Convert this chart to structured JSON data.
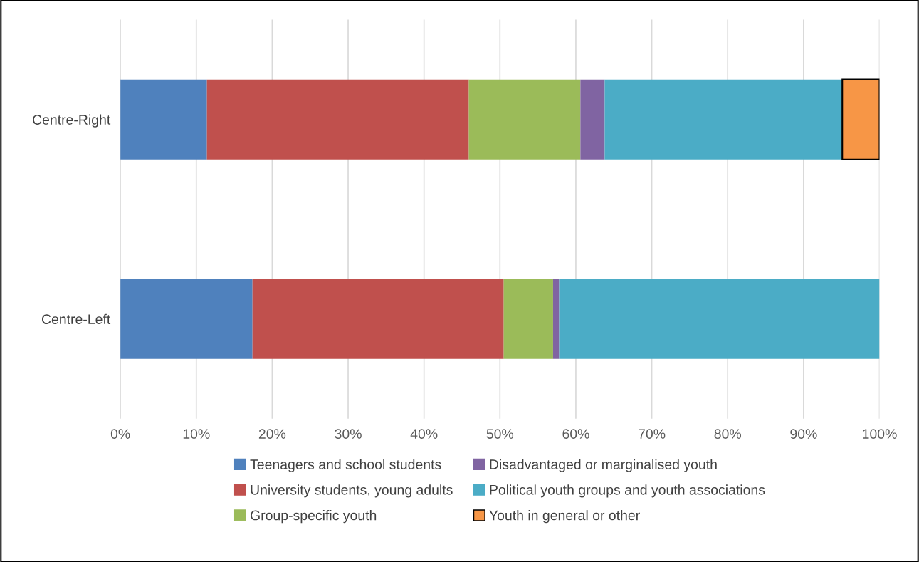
{
  "chart_data": {
    "type": "bar",
    "orientation": "horizontal",
    "stacked": true,
    "categories": [
      "Centre-Right",
      "Centre-Left"
    ],
    "series": [
      {
        "name": "Teenagers and school students",
        "color": "#4f81bd",
        "values": [
          11.4,
          17.4
        ]
      },
      {
        "name": "University students, young adults",
        "color": "#c0504d",
        "values": [
          34.5,
          33.1
        ]
      },
      {
        "name": "Group-specific youth",
        "color": "#9bbb59",
        "values": [
          14.7,
          6.5
        ]
      },
      {
        "name": "Disadvantaged or marginalised youth",
        "color": "#8064a2",
        "values": [
          3.2,
          0.8
        ]
      },
      {
        "name": "Political youth groups and youth associations",
        "color": "#4bacc6",
        "values": [
          31.3,
          42.2
        ]
      },
      {
        "name": "Youth in general or other",
        "color": "#f79646",
        "values": [
          4.9,
          null
        ]
      }
    ],
    "xlim": [
      0,
      100
    ],
    "xticks": [
      {
        "value": 0,
        "label": "0%"
      },
      {
        "value": 10,
        "label": "10%"
      },
      {
        "value": 20,
        "label": "20%"
      },
      {
        "value": 30,
        "label": "30%"
      },
      {
        "value": 40,
        "label": "40%"
      },
      {
        "value": 50,
        "label": "50%"
      },
      {
        "value": 60,
        "label": "60%"
      },
      {
        "value": 70,
        "label": "70%"
      },
      {
        "value": 80,
        "label": "80%"
      },
      {
        "value": 90,
        "label": "90%"
      },
      {
        "value": 100,
        "label": "100%"
      }
    ],
    "grid": "x",
    "legend": "bottom"
  }
}
